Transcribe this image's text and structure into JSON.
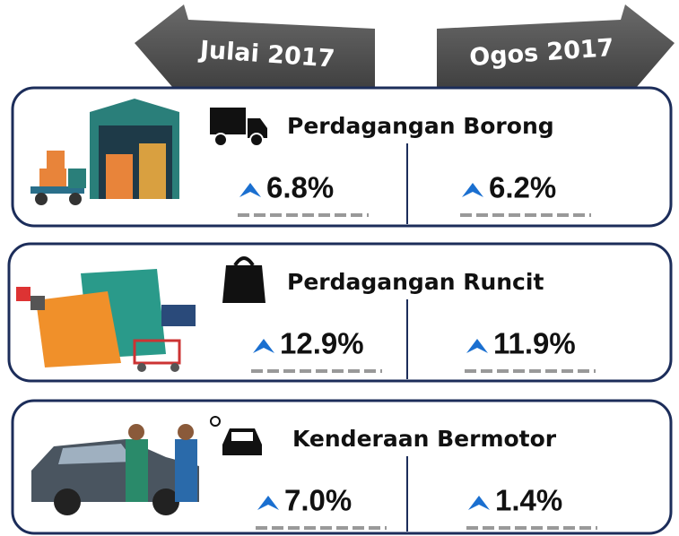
{
  "periods": [
    "Julai 2017",
    "Ogos 2017"
  ],
  "sections": [
    {
      "title": "Perdagangan Borong",
      "values": [
        "6.8%",
        "6.2%"
      ]
    },
    {
      "title": "Perdagangan Runcit",
      "values": [
        "12.9%",
        "11.9%"
      ]
    },
    {
      "title": "Kenderaan Bermotor",
      "values": [
        "7.0%",
        "1.4%"
      ]
    }
  ]
}
